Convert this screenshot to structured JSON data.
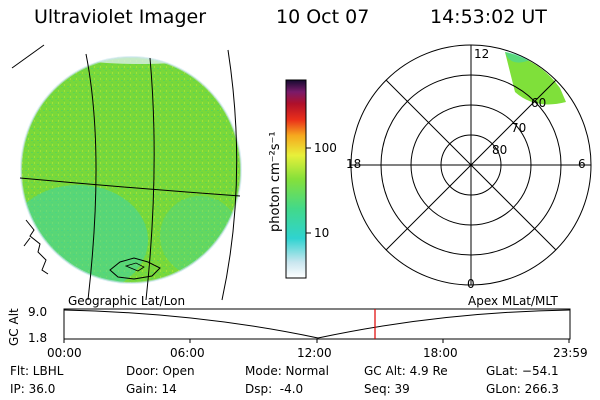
{
  "header": {
    "app_title": "Ultraviolet Imager",
    "date": "10 Oct 07",
    "time": "14:53:02 UT"
  },
  "colorbar": {
    "unit_label": "photon cm⁻²s⁻¹",
    "ticks": [
      "100",
      "10"
    ]
  },
  "polar_plot": {
    "lat_labels": [
      "60",
      "70",
      "80"
    ],
    "mlt_labels": {
      "top": "12",
      "left": "18",
      "right": "6",
      "bottom": "0"
    }
  },
  "timeline": {
    "left_caption": "Geographic Lat/Lon",
    "right_caption": "Apex MLat/MLT",
    "y_axis_label": "GC Alt",
    "y_ticks": [
      "9.0",
      "1.8"
    ],
    "x_ticks": [
      "00:00",
      "06:00",
      "12:00",
      "18:00",
      "23:59"
    ],
    "current_time_marker": "14:53"
  },
  "status": {
    "flt": "Flt: LBHL",
    "ip": "IP: 36.0",
    "door": "Door: Open",
    "gain": "Gain: 14",
    "mode": "Mode: Normal",
    "dsp": "Dsp:  -4.0",
    "gcalt": "GC Alt: 4.9 Re",
    "seq": "Seq: 39",
    "glat": "GLat: −54.1",
    "glon": "GLon: 266.3"
  },
  "colors": {
    "earth_green": "#72d631",
    "aurora_green": "#8fe037",
    "marker_red": "#e00000"
  }
}
